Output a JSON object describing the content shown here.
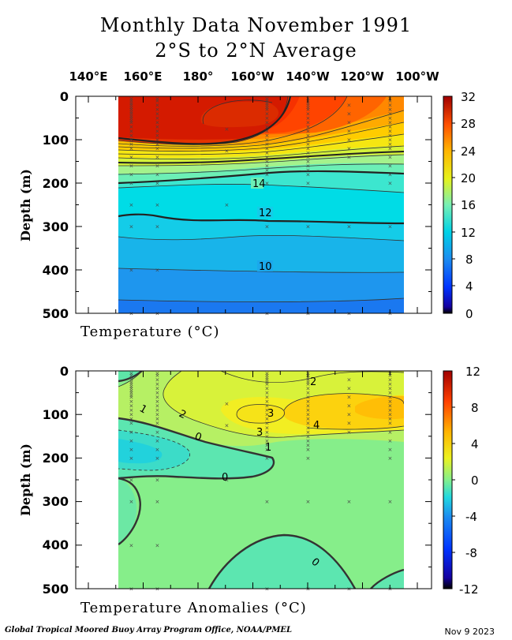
{
  "title_line1": "Monthly Data November 1991",
  "title_line2": "2°S to 2°N Average",
  "longitude_labels": [
    "140°E",
    "160°E",
    "180°",
    "160°W",
    "140°W",
    "120°W",
    "100°W"
  ],
  "footer": {
    "credit": "Global Tropical Moored Buoy Array Program Office, NOAA/PMEL",
    "date": "Nov  9 2023"
  },
  "chart_data": [
    {
      "type": "heatmap",
      "label": "Temperature  (°C)",
      "ylabel": "Depth (m)",
      "x_ticks": [
        "140°E",
        "160°E",
        "180°",
        "160°W",
        "140°W",
        "120°W",
        "100°W"
      ],
      "ylim": [
        500,
        0
      ],
      "y_ticks": [
        0,
        100,
        200,
        300,
        400,
        500
      ],
      "colorbar": {
        "min": 0,
        "max": 32,
        "ticks": [
          0,
          4,
          8,
          12,
          16,
          20,
          24,
          28,
          32
        ]
      },
      "contour_labels": [
        "14",
        "12",
        "10"
      ],
      "depth_profile_degC": [
        [
          0,
          29.5
        ],
        [
          50,
          29
        ],
        [
          100,
          27.5
        ],
        [
          150,
          22
        ],
        [
          200,
          15
        ],
        [
          250,
          13.5
        ],
        [
          300,
          12
        ],
        [
          350,
          11
        ],
        [
          400,
          10
        ],
        [
          450,
          9.2
        ],
        [
          500,
          8.6
        ]
      ]
    },
    {
      "type": "heatmap",
      "label": "Temperature Anomalies (°C)",
      "ylabel": "Depth (m)",
      "x_ticks": [
        "140°E",
        "160°E",
        "180°",
        "160°W",
        "140°W",
        "120°W",
        "100°W"
      ],
      "ylim": [
        500,
        0
      ],
      "y_ticks": [
        0,
        100,
        200,
        300,
        400,
        500
      ],
      "colorbar": {
        "min": -12,
        "max": 12,
        "ticks": [
          -12,
          -8,
          -4,
          0,
          4,
          8,
          12
        ]
      },
      "contour_labels": [
        "2",
        "1",
        "2",
        "3",
        "3",
        "4",
        "0",
        "1",
        "0",
        "0"
      ]
    }
  ]
}
